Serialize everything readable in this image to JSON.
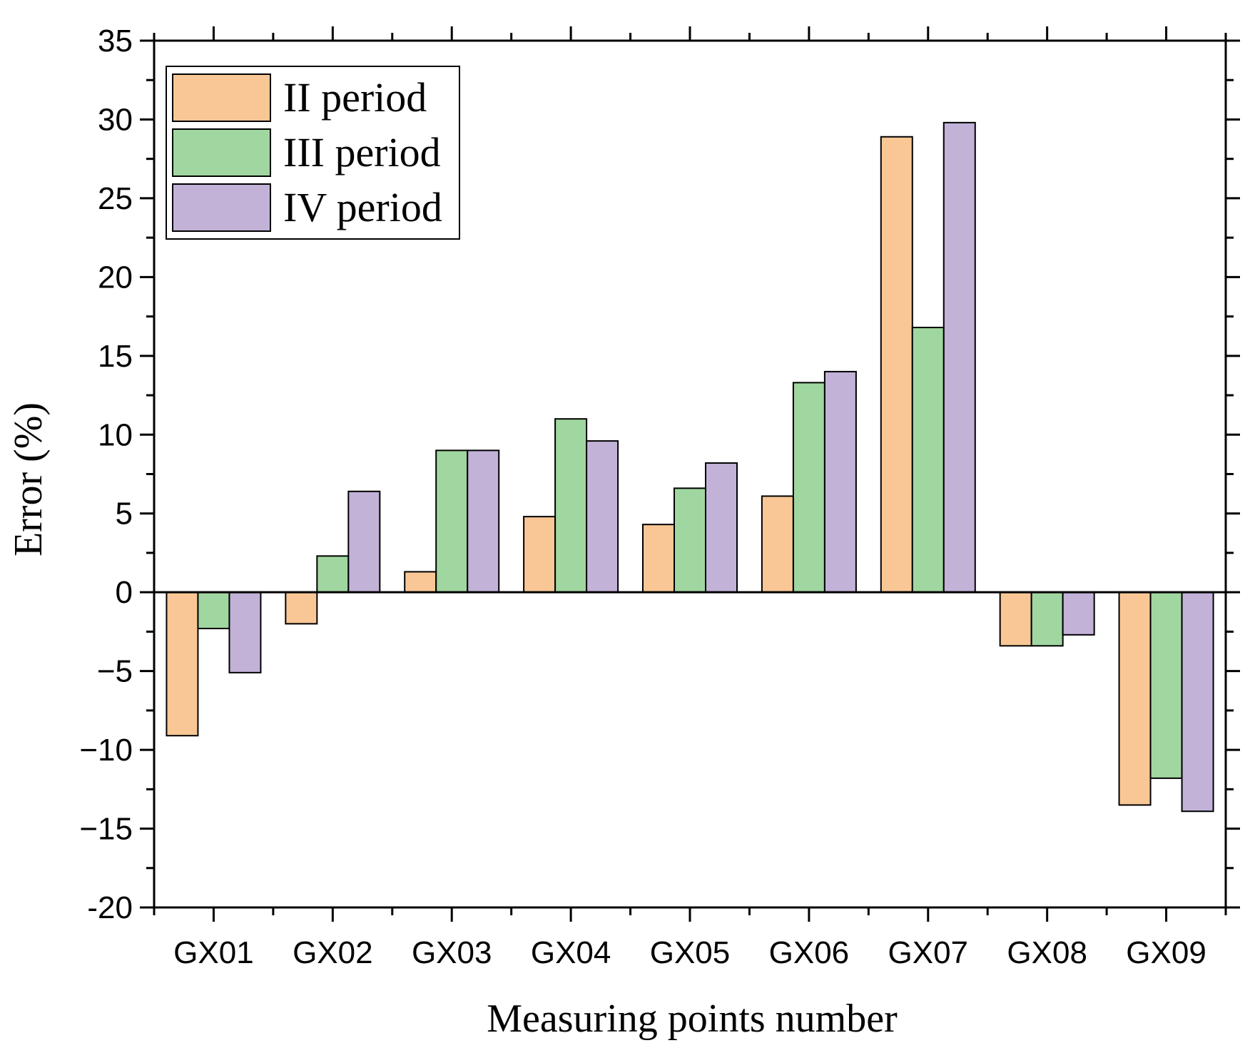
{
  "chart_data": {
    "type": "bar",
    "title": "",
    "xlabel": "Measuring points number",
    "ylabel": "Error (%)",
    "ylim": [
      -20,
      35
    ],
    "yticks": [
      35,
      30,
      25,
      20,
      15,
      10,
      5,
      0,
      -5,
      -10,
      -15,
      -20
    ],
    "ytick_labels": [
      "35",
      "30",
      "25",
      "20",
      "15",
      "10",
      "5",
      "0",
      "−5",
      "−10",
      "−15",
      "-20"
    ],
    "categories": [
      "GX01",
      "GX02",
      "GX03",
      "GX04",
      "GX05",
      "GX06",
      "GX07",
      "GX08",
      "GX09"
    ],
    "series": [
      {
        "name": "II period",
        "color": "#F9C796",
        "values": [
          -9.1,
          -2.0,
          1.3,
          4.8,
          4.3,
          6.1,
          28.9,
          -3.4,
          -13.5
        ]
      },
      {
        "name": "III period",
        "color": "#A0D7A0",
        "values": [
          -2.3,
          2.3,
          9.0,
          11.0,
          6.6,
          13.3,
          16.8,
          -3.4,
          -11.8
        ]
      },
      {
        "name": "IV period",
        "color": "#C2B2D8",
        "values": [
          -5.1,
          6.4,
          9.0,
          9.6,
          8.2,
          14.0,
          29.8,
          -2.7,
          -13.9
        ]
      }
    ],
    "legend": {
      "position": "top-left",
      "entries": [
        "II period",
        "III period",
        "IV period"
      ]
    },
    "grid": false
  }
}
